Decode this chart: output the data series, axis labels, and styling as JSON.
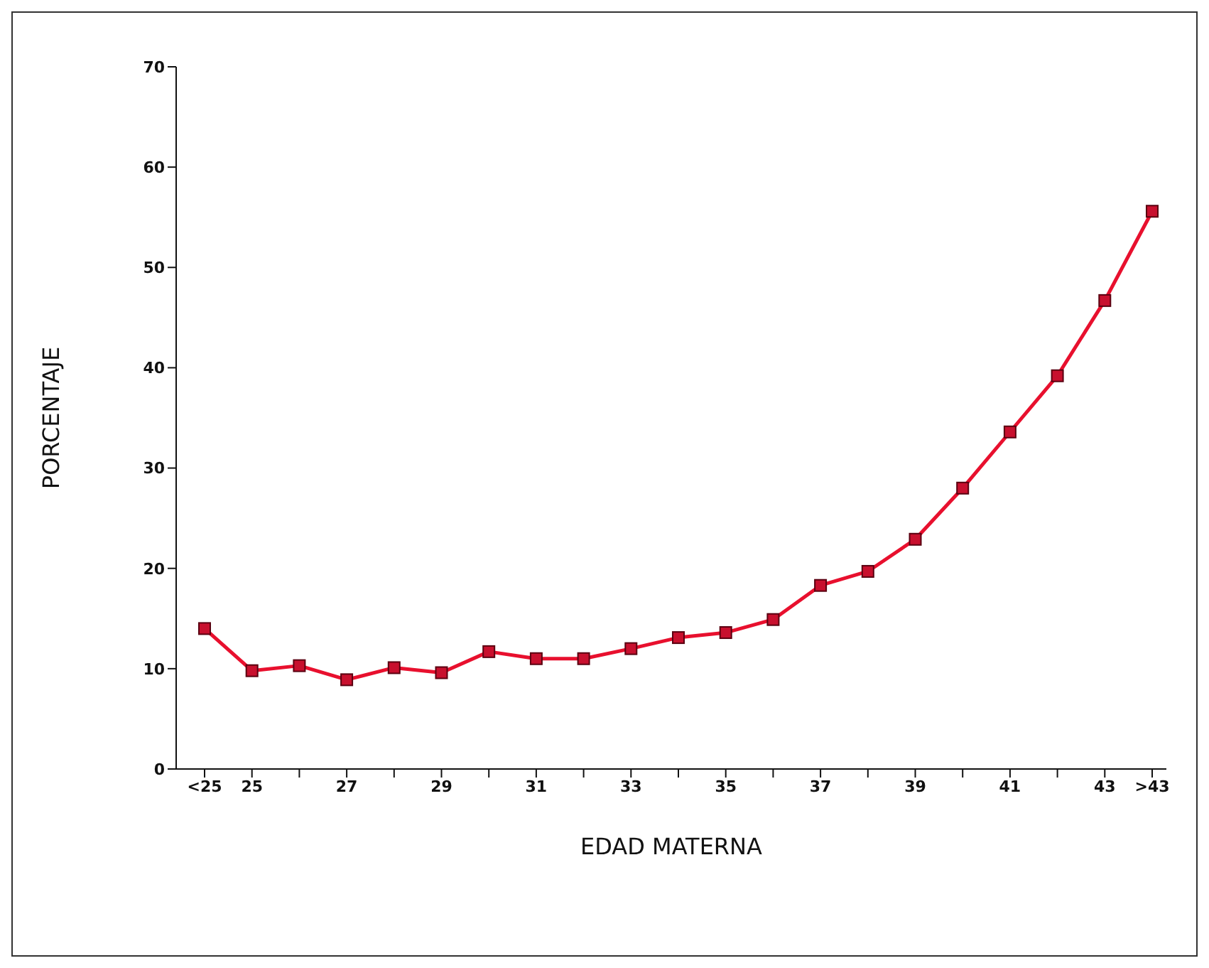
{
  "chart_data": {
    "type": "line",
    "xlabel": "EDAD MATERNA",
    "ylabel": "PORCENTAJE",
    "categories": [
      "<25",
      "25",
      null,
      "27",
      null,
      "29",
      null,
      "31",
      null,
      "33",
      null,
      "35",
      null,
      "37",
      null,
      "39",
      null,
      "41",
      null,
      "43",
      ">43"
    ],
    "series": [
      {
        "color": "#e8102e",
        "values": [
          14,
          9.8,
          10.3,
          8.9,
          10.1,
          9.6,
          11.7,
          11,
          11,
          12,
          13.1,
          13.6,
          14.9,
          18.3,
          19.7,
          22.9,
          28,
          33.6,
          39.2,
          46.7,
          55.6
        ]
      }
    ],
    "ylim": [
      0,
      70
    ],
    "yticks": [
      0,
      10,
      20,
      30,
      40,
      50,
      60,
      70
    ],
    "grid": false,
    "legend": false,
    "marker": "square",
    "line_style": "solid"
  }
}
